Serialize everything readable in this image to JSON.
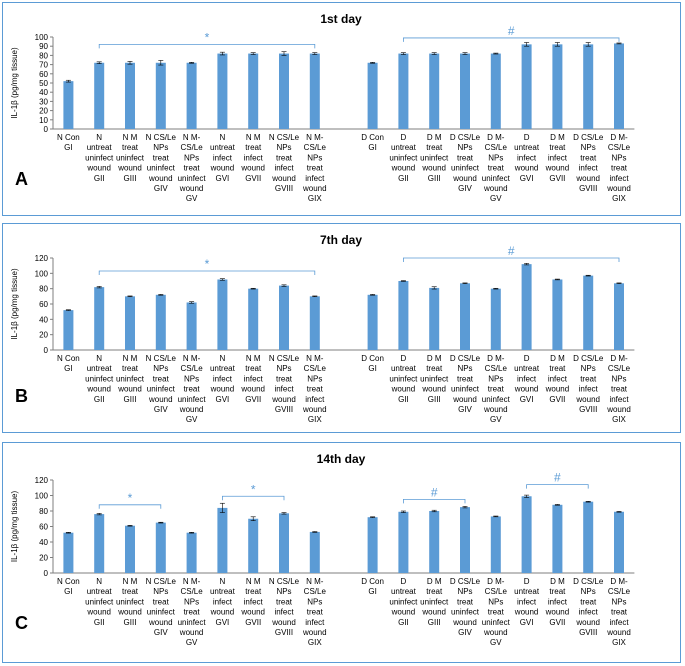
{
  "colors": {
    "bar": "#5b9bd5",
    "bracket": "#5b9bd5",
    "axis": "#7f7f7f"
  },
  "chart_data": [
    {
      "type": "bar",
      "panel_letter": "A",
      "title": "1st day",
      "ylabel": "IL-1β (pg/mg tissue)",
      "ylim": [
        0,
        100
      ],
      "yticks": [
        0,
        10,
        20,
        30,
        40,
        50,
        60,
        70,
        80,
        90,
        100
      ],
      "categories": [
        "N Con GI",
        "N untreat uninfect wound GII",
        "N M treat uninfect wound GIII",
        "N CS/Le NPs treat uninfect wound GIV",
        "N M-CS/Le NPs treat uninfect wound GV",
        "N untreat infect wound GVI",
        "N M treat infect wound GVII",
        "N CS/Le NPs treat infect wound GVIII",
        "N M-CS/Le NPs treat infect wound GIX",
        "D Con GI",
        "D untreat uninfect wound GII",
        "D M treat uninfect wound GIII",
        "D CS/Le NPs treat uninfect wound GIV",
        "D M-CS/Le NPs treat uninfect wound GV",
        "D untreat infect wound GVI",
        "D M treat infect wound GVII",
        "D CS/Le NPs treat infect wound GVIII",
        "D M-CS/Le NPs treat infect wound GIX"
      ],
      "label_lines": [
        [
          "N Con",
          "GI"
        ],
        [
          "N",
          "untreat",
          "uninfect",
          "wound",
          "GII"
        ],
        [
          "N M",
          "treat",
          "uninfect",
          "wound",
          "GIII"
        ],
        [
          "N CS/Le",
          "NPs",
          "treat",
          "uninfect",
          "wound",
          "GIV"
        ],
        [
          "N M-",
          "CS/Le",
          "NPs",
          "treat",
          "uninfect",
          "wound",
          "GV"
        ],
        [
          "N",
          "untreat",
          "infect",
          "wound",
          "GVI"
        ],
        [
          "N M",
          "treat",
          "infect",
          "wound",
          "GVII"
        ],
        [
          "N CS/Le",
          "NPs",
          "treat",
          "infect",
          "wound",
          "GVIII"
        ],
        [
          "N M-",
          "CS/Le",
          "NPs",
          "treat",
          "infect",
          "wound",
          "GIX"
        ],
        [
          "D Con",
          "GI"
        ],
        [
          "D",
          "untreat",
          "uninfect",
          "wound",
          "GII"
        ],
        [
          "D M",
          "treat",
          "uninfect",
          "wound",
          "GIII"
        ],
        [
          "D CS/Le",
          "NPs",
          "treat",
          "uninfect",
          "wound",
          "GIV"
        ],
        [
          "D M-",
          "CS/Le",
          "NPs",
          "treat",
          "uninfect",
          "wound",
          "GV"
        ],
        [
          "D",
          "untreat",
          "infect",
          "wound",
          "GVI"
        ],
        [
          "D M",
          "treat",
          "infect",
          "wound",
          "GVII"
        ],
        [
          "D CS/Le",
          "NPs",
          "treat",
          "infect",
          "wound",
          "GVIII"
        ],
        [
          "D M-",
          "CS/Le",
          "NPs",
          "treat",
          "infect",
          "wound",
          "GIX"
        ]
      ],
      "values": [
        52,
        72,
        72,
        72,
        72,
        82,
        82,
        82,
        82,
        72,
        82,
        82,
        82,
        82,
        92,
        92,
        92,
        93
      ],
      "errors": [
        1,
        1,
        1.5,
        2.5,
        0.5,
        1.5,
        1,
        2,
        1,
        0.5,
        1,
        1,
        1,
        0.5,
        2,
        2,
        2,
        0.5
      ],
      "brackets": [
        {
          "from": 1,
          "to": 8,
          "y": 92,
          "symbol": "*"
        },
        {
          "from": 10,
          "to": 17,
          "y": 99,
          "symbol": "#"
        }
      ]
    },
    {
      "type": "bar",
      "panel_letter": "B",
      "title": "7th day",
      "ylabel": "IL-1β (pg/mg tissue)",
      "ylim": [
        0,
        120
      ],
      "yticks": [
        0,
        20,
        40,
        60,
        80,
        100,
        120
      ],
      "categories": [
        "N Con GI",
        "N untreat uninfect wound GII",
        "N M treat uninfect wound GIII",
        "N CS/Le NPs treat uninfect wound GIV",
        "N M-CS/Le NPs treat uninfect wound GV",
        "N untreat infect wound GVI",
        "N M treat infect wound GVII",
        "N CS/Le NPs treat infect wound GVIII",
        "N M-CS/Le NPs treat infect wound GIX",
        "D Con GI",
        "D untreat uninfect wound GII",
        "D M treat uninfect wound GIII",
        "D CS/Le NPs treat uninfect wound GIV",
        "D M-CS/Le NPs treat uninfect wound GV",
        "D untreat infect wound GVI",
        "D M treat infect wound GVII",
        "D CS/Le NPs treat infect wound GVIII",
        "D M-CS/Le NPs treat infect wound GIX"
      ],
      "label_lines": [
        [
          "N Con",
          "GI"
        ],
        [
          "N",
          "untreat",
          "uninfect",
          "wound",
          "GII"
        ],
        [
          "N M",
          "treat",
          "uninfect",
          "wound",
          "GIII"
        ],
        [
          "N CS/Le",
          "NPs",
          "treat",
          "uninfect",
          "wound",
          "GIV"
        ],
        [
          "N M-",
          "CS/Le",
          "NPs",
          "treat",
          "uninfect",
          "wound",
          "GV"
        ],
        [
          "N",
          "untreat",
          "infect",
          "wound",
          "GVI"
        ],
        [
          "N M",
          "treat",
          "infect",
          "wound",
          "GVII"
        ],
        [
          "N CS/Le",
          "NPs",
          "treat",
          "infect",
          "wound",
          "GVIII"
        ],
        [
          "N M-",
          "CS/Le",
          "NPs",
          "treat",
          "infect",
          "wound",
          "GIX"
        ],
        [
          "D Con",
          "GI"
        ],
        [
          "D",
          "untreat",
          "uninfect",
          "wound",
          "GII"
        ],
        [
          "D M",
          "treat",
          "uninfect",
          "wound",
          "GIII"
        ],
        [
          "D CS/Le",
          "NPs",
          "treat",
          "uninfect",
          "wound",
          "GIV"
        ],
        [
          "D M-",
          "CS/Le",
          "NPs",
          "treat",
          "uninfect",
          "wound",
          "GV"
        ],
        [
          "D",
          "untreat",
          "infect",
          "wound",
          "GVI"
        ],
        [
          "D M",
          "treat",
          "infect",
          "wound",
          "GVII"
        ],
        [
          "D CS/Le",
          "NPs",
          "treat",
          "infect",
          "wound",
          "GVIII"
        ],
        [
          "D M-",
          "CS/Le",
          "NPs",
          "treat",
          "infect",
          "wound",
          "GIX"
        ]
      ],
      "values": [
        52,
        82,
        70,
        72,
        62,
        92,
        80,
        84,
        70,
        72,
        90,
        81,
        87,
        80,
        112,
        92,
        97,
        87
      ],
      "errors": [
        0.5,
        1,
        0.5,
        0.5,
        1,
        1,
        0.5,
        1,
        0.5,
        0.5,
        0.5,
        1.5,
        0.5,
        0.5,
        1,
        0.5,
        0.5,
        0.5
      ],
      "brackets": [
        {
          "from": 1,
          "to": 8,
          "y": 103,
          "symbol": "*"
        },
        {
          "from": 10,
          "to": 17,
          "y": 120,
          "symbol": "#"
        }
      ]
    },
    {
      "type": "bar",
      "panel_letter": "C",
      "title": "14th day",
      "ylabel": "IL-1β (pg/mg tissue)",
      "ylim": [
        0,
        120
      ],
      "yticks": [
        0,
        20,
        40,
        60,
        80,
        100,
        120
      ],
      "categories": [
        "N Con GI",
        "N untreat uninfect wound GII",
        "N M treat uninfect wound GIII",
        "N CS/Le NPs treat uninfect wound GIV",
        "N M-CS/Le NPs treat uninfect wound GV",
        "N untreat infect wound GVI",
        "N M treat infect wound GVII",
        "N CS/Le NPs treat infect wound GVIII",
        "N M-CS/Le NPs treat infect wound GIX",
        "D Con GI",
        "D untreat uninfect wound GII",
        "D M treat uninfect wound GIII",
        "D CS/Le NPs treat uninfect wound GIV",
        "D M-CS/Le NPs treat uninfect wound GV",
        "D untreat infect wound GVI",
        "D M treat infect wound GVII",
        "D CS/Le NPs treat infect wound GVIII",
        "D M-CS/Le NPs treat infect wound GIX"
      ],
      "label_lines": [
        [
          "N Con",
          "GI"
        ],
        [
          "N",
          "untreat",
          "uninfect",
          "wound",
          "GII"
        ],
        [
          "N M",
          "treat",
          "uninfect",
          "wound",
          "GIII"
        ],
        [
          "N CS/Le",
          "NPs",
          "treat",
          "uninfect",
          "wound",
          "GIV"
        ],
        [
          "N M-",
          "CS/Le",
          "NPs",
          "treat",
          "uninfect",
          "wound",
          "GV"
        ],
        [
          "N",
          "untreat",
          "infect",
          "wound",
          "GVI"
        ],
        [
          "N M",
          "treat",
          "infect",
          "wound",
          "GVII"
        ],
        [
          "N CS/Le",
          "NPs",
          "treat",
          "infect",
          "wound",
          "GVIII"
        ],
        [
          "N M-",
          "CS/Le",
          "NPs",
          "treat",
          "infect",
          "wound",
          "GIX"
        ],
        [
          "D Con",
          "GI"
        ],
        [
          "D",
          "untreat",
          "uninfect",
          "wound",
          "GII"
        ],
        [
          "D M",
          "treat",
          "uninfect",
          "wound",
          "GIII"
        ],
        [
          "D CS/Le",
          "NPs",
          "treat",
          "uninfect",
          "wound",
          "GIV"
        ],
        [
          "D M-",
          "CS/Le",
          "NPs",
          "treat",
          "uninfect",
          "wound",
          "GV"
        ],
        [
          "D",
          "untreat",
          "infect",
          "wound",
          "GVI"
        ],
        [
          "D M",
          "treat",
          "infect",
          "wound",
          "GVII"
        ],
        [
          "D CS/Le",
          "NPs",
          "treat",
          "infect",
          "wound",
          "GVIII"
        ],
        [
          "D M-",
          "CS/Le",
          "NPs",
          "treat",
          "infect",
          "wound",
          "GIX"
        ]
      ],
      "values": [
        52,
        76,
        61,
        65,
        52,
        84,
        70,
        77,
        53,
        72,
        79,
        80,
        85,
        73,
        99,
        88,
        92,
        79
      ],
      "errors": [
        0.5,
        1,
        0.5,
        0.5,
        0.5,
        6,
        2.5,
        1,
        0.5,
        0.5,
        1,
        1,
        1,
        0.5,
        1.5,
        0.5,
        0.5,
        0.5
      ],
      "brackets": [
        {
          "from": 1,
          "to": 3,
          "y": 88,
          "symbol": "*"
        },
        {
          "from": 5,
          "to": 7,
          "y": 99,
          "symbol": "*"
        },
        {
          "from": 10,
          "to": 12,
          "y": 95,
          "symbol": "#"
        },
        {
          "from": 14,
          "to": 16,
          "y": 114,
          "symbol": "#"
        }
      ]
    }
  ]
}
